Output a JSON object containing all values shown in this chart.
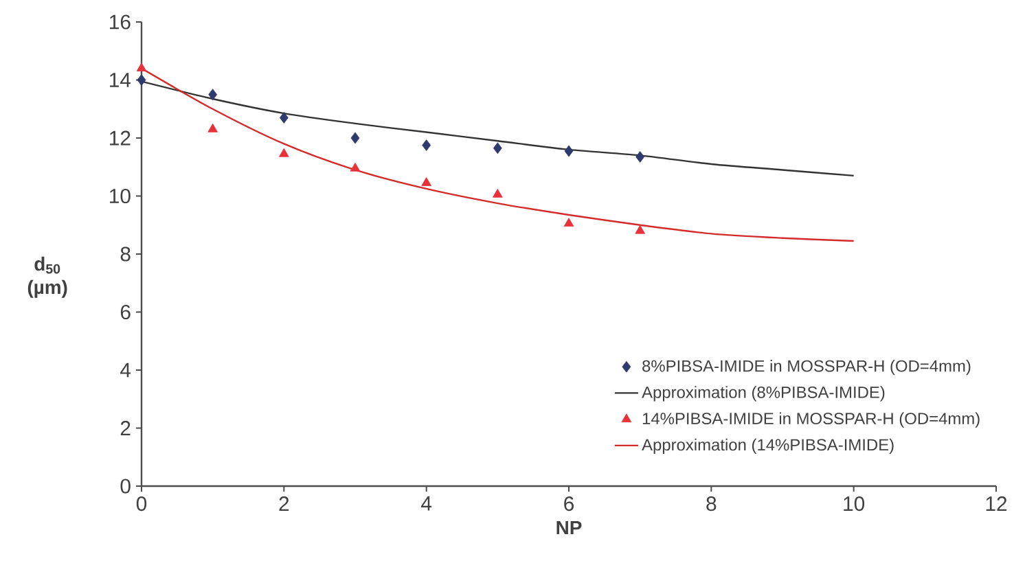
{
  "chart_data": {
    "type": "scatter",
    "xlabel": "NP",
    "ylabel": "d$_{50}$ (µm)",
    "xlim": [
      0,
      12
    ],
    "ylim": [
      0,
      16
    ],
    "xticks": [
      0,
      2,
      4,
      6,
      8,
      10,
      12
    ],
    "yticks": [
      0,
      2,
      4,
      6,
      8,
      10,
      12,
      14,
      16
    ],
    "grid": false,
    "legend": "bottom right",
    "series": [
      {
        "name": "8%PIBSA-IMIDE in MOSSPAR-H (OD=4mm)",
        "marker": "diamond",
        "color": "#2e3a6e",
        "x": [
          0,
          1,
          2,
          3,
          4,
          5,
          6,
          7
        ],
        "values": [
          14.0,
          13.5,
          12.7,
          12.0,
          11.75,
          11.65,
          11.55,
          11.35
        ]
      },
      {
        "name": "Approximation (8%PIBSA-IMIDE)",
        "type": "line",
        "line_style": "solid",
        "color": "#333333",
        "x": [
          0,
          1,
          2,
          3,
          4,
          5,
          6,
          7,
          8,
          9,
          10
        ],
        "values": [
          13.95,
          13.35,
          12.85,
          12.5,
          12.2,
          11.9,
          11.6,
          11.4,
          11.1,
          10.9,
          10.7
        ]
      },
      {
        "name": "14%PIBSA-IMIDE in MOSSPAR-H (OD=4mm)",
        "marker": "triangle",
        "color": "#e8323a",
        "x": [
          0,
          1,
          2,
          3,
          4,
          5,
          6,
          7
        ],
        "values": [
          14.4,
          12.3,
          11.45,
          10.95,
          10.45,
          10.05,
          9.05,
          8.8
        ]
      },
      {
        "name": "Approximation (14%PIBSA-IMIDE)",
        "type": "line",
        "line_style": "solid",
        "color": "#d42a2a",
        "x": [
          0,
          1,
          2,
          3,
          4,
          5,
          6,
          7,
          8,
          9,
          10
        ],
        "values": [
          14.4,
          13.0,
          11.8,
          10.9,
          10.25,
          9.75,
          9.35,
          9.0,
          8.7,
          8.55,
          8.45
        ]
      }
    ]
  }
}
